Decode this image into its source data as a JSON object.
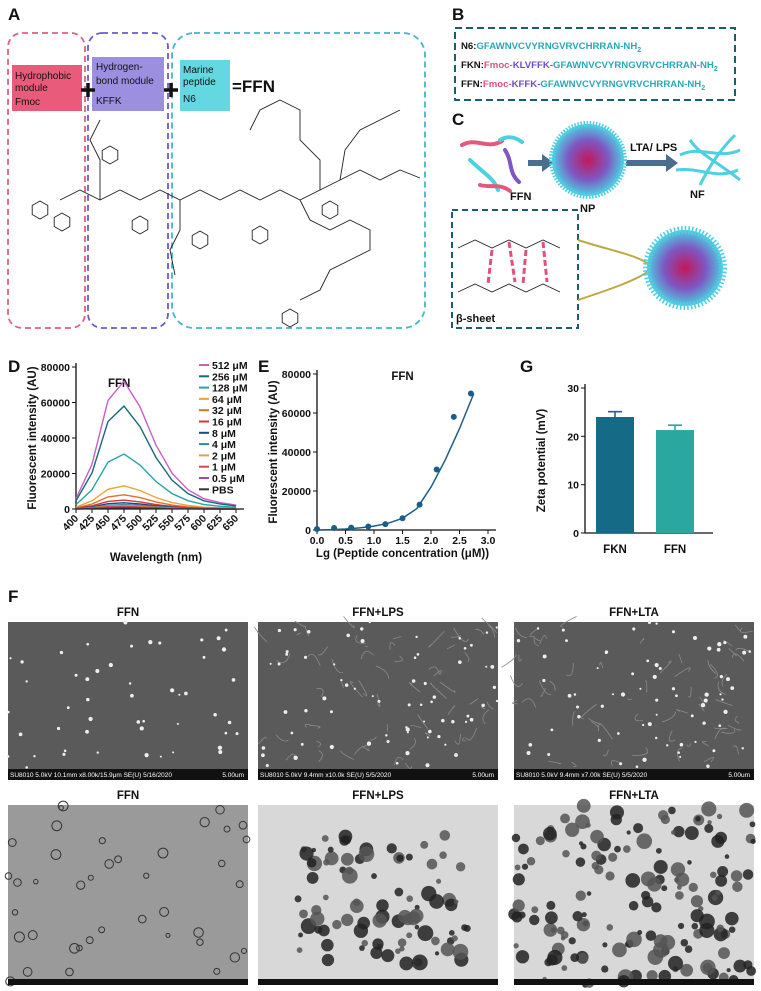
{
  "panel_a": {
    "label": "A",
    "modules": [
      {
        "lines": [
          "Hydrophobic",
          "module"
        ],
        "name": "Fmoc"
      },
      {
        "lines": [
          "Hydrogen-",
          "bond module"
        ],
        "name": "KFFK"
      },
      {
        "lines": [
          "Marine",
          "peptide"
        ],
        "name": "N6"
      }
    ],
    "result": "=FFN"
  },
  "panel_b": {
    "label": "B",
    "sequences": [
      {
        "label": "N6:",
        "fmoc": "",
        "linker": "",
        "seq": "GFAWNVCVYRNGVRVCHRRAN-NH",
        "sub": "2"
      },
      {
        "label": "FKN:",
        "fmoc": "Fmoc-",
        "linker": "KLVFFK-",
        "seq": "GFAWNVCVYRNGVRVCHRRAN-NH",
        "sub": "2"
      },
      {
        "label": "FFN:",
        "fmoc": "Fmoc-",
        "linker": "KFFK-",
        "seq": "GFAWNVCVYRNGVRVCHRRAN-NH",
        "sub": "2"
      }
    ]
  },
  "panel_c": {
    "label": "C",
    "monomer": "FFN",
    "np": "NP",
    "trigger": "LTA/ LPS",
    "nf": "NF",
    "sheet": "β-sheet"
  },
  "chart_data": [
    {
      "panel": "D",
      "type": "line",
      "title": "FFN",
      "x_label": "Wavelength (nm)",
      "y_label": "Fluorescent intensity (AU)",
      "x": [
        400,
        425,
        450,
        475,
        500,
        525,
        550,
        575,
        600,
        625,
        650
      ],
      "xlim": [
        400,
        650
      ],
      "xticks": [
        400,
        425,
        450,
        475,
        500,
        525,
        550,
        575,
        600,
        625,
        650
      ],
      "ylim": [
        0,
        80000
      ],
      "yticks": [
        0,
        20000,
        40000,
        60000,
        80000
      ],
      "series": [
        {
          "name": "512 μM",
          "color": "#c85fc8",
          "values": [
            5800,
            25200,
            61200,
            72000,
            57600,
            36000,
            20200,
            10800,
            5800,
            3600,
            2200
          ]
        },
        {
          "name": "256 μM",
          "color": "#17697c",
          "values": [
            4600,
            20300,
            49300,
            58000,
            46400,
            29000,
            16200,
            8700,
            4600,
            2900,
            1700
          ]
        },
        {
          "name": "128 μM",
          "color": "#26a3a8",
          "values": [
            2500,
            10900,
            26400,
            31000,
            24800,
            15500,
            8700,
            4700,
            2500,
            1600,
            900
          ]
        },
        {
          "name": "64 μM",
          "color": "#f0a437",
          "values": [
            1000,
            4600,
            11100,
            13000,
            10400,
            6500,
            3600,
            2000,
            1000,
            700,
            400
          ]
        },
        {
          "name": "32 μM",
          "color": "#e0702a",
          "values": [
            600,
            2800,
            6800,
            8000,
            6400,
            4000,
            2200,
            1200,
            600,
            400,
            200
          ]
        },
        {
          "name": "16 μM",
          "color": "#d8323c",
          "values": [
            400,
            1800,
            4300,
            5000,
            4000,
            2500,
            1400,
            800,
            400,
            300,
            200
          ]
        },
        {
          "name": "8 μM",
          "color": "#1d4a78",
          "values": [
            300,
            1200,
            3000,
            3500,
            2800,
            1800,
            1000,
            500,
            300,
            200,
            100
          ]
        },
        {
          "name": "4 μM",
          "color": "#2b8c9a",
          "values": [
            200,
            900,
            2100,
            2500,
            2000,
            1300,
            700,
            400,
            200,
            100,
            100
          ]
        },
        {
          "name": "2 μM",
          "color": "#e99a4c",
          "values": [
            200,
            700,
            1700,
            2000,
            1600,
            1000,
            600,
            300,
            200,
            100,
            100
          ]
        },
        {
          "name": "1 μM",
          "color": "#d44a4a",
          "values": [
            100,
            500,
            1300,
            1500,
            1200,
            800,
            400,
            200,
            100,
            100,
            0
          ]
        },
        {
          "name": "0.5 μM",
          "color": "#a648a6",
          "values": [
            100,
            400,
            900,
            1000,
            800,
            500,
            300,
            200,
            100,
            0,
            0
          ]
        },
        {
          "name": "PBS",
          "color": "#333333",
          "values": [
            0,
            200,
            400,
            500,
            400,
            300,
            100,
            100,
            0,
            0,
            0
          ]
        }
      ]
    },
    {
      "panel": "E",
      "type": "scatter",
      "title": "FFN",
      "x_label": "Lg (Peptide concentration (μM))",
      "y_label": "Fluorescent intensity (AU)",
      "xlim": [
        0,
        3
      ],
      "xticks": [
        {
          "value": 0,
          "label": "0.0"
        },
        0.5,
        {
          "value": 1,
          "label": "1.0"
        },
        1.5,
        {
          "value": 2,
          "label": "2.0"
        },
        2.5,
        {
          "value": 3,
          "label": "3.0"
        }
      ],
      "ylim": [
        0,
        80000
      ],
      "yticks": [
        0,
        20000,
        40000,
        60000,
        80000
      ],
      "series": [
        {
          "color": "#1c5d8a",
          "marker": "circle",
          "x": [
            0,
            0.3,
            0.6,
            0.9,
            1.2,
            1.5,
            1.8,
            2.1,
            2.4,
            2.7
          ],
          "values": [
            500,
            1000,
            1200,
            1800,
            3000,
            6000,
            13000,
            31000,
            58000,
            70000
          ]
        },
        {
          "color": "#1c5d8a",
          "style": "line",
          "x": [
            0,
            0.25,
            0.5,
            0.75,
            1,
            1.25,
            1.5,
            1.75,
            2,
            2.25,
            2.5,
            2.75
          ],
          "values": [
            0,
            200,
            500,
            1100,
            2000,
            3500,
            6000,
            11000,
            22000,
            36000,
            52000,
            70000
          ]
        }
      ]
    },
    {
      "panel": "G",
      "type": "bar",
      "y_label": "Zeta potential (mV)",
      "categories": [
        "FKN",
        "FFN"
      ],
      "values": [
        24,
        21.3
      ],
      "errors": [
        1.1,
        1
      ],
      "colors": [
        "#156b86",
        "#2aa8a0"
      ],
      "ylim": [
        0,
        30
      ],
      "yticks": [
        0,
        10,
        20,
        30
      ]
    }
  ],
  "panel_f": {
    "label": "F",
    "sem": [
      {
        "title": "FFN",
        "caption": "SU8010 5.0kV 10.1mm x8.00k/15.9μm SE(U) 5/16/2020",
        "scale": "5.00um"
      },
      {
        "title": "FFN+LPS",
        "caption": "SU8010 5.0kV 9.4mm x10.0k SE(U) 5/5/2020",
        "scale": "5.00um"
      },
      {
        "title": "FFN+LTA",
        "caption": "SU8010 5.0kV 9.4mm x7.00k SE(U) 5/5/2020",
        "scale": "5.00um"
      }
    ],
    "tem": [
      {
        "title": "FFN"
      },
      {
        "title": "FFN+LPS"
      },
      {
        "title": "FFN+LTA"
      }
    ]
  }
}
